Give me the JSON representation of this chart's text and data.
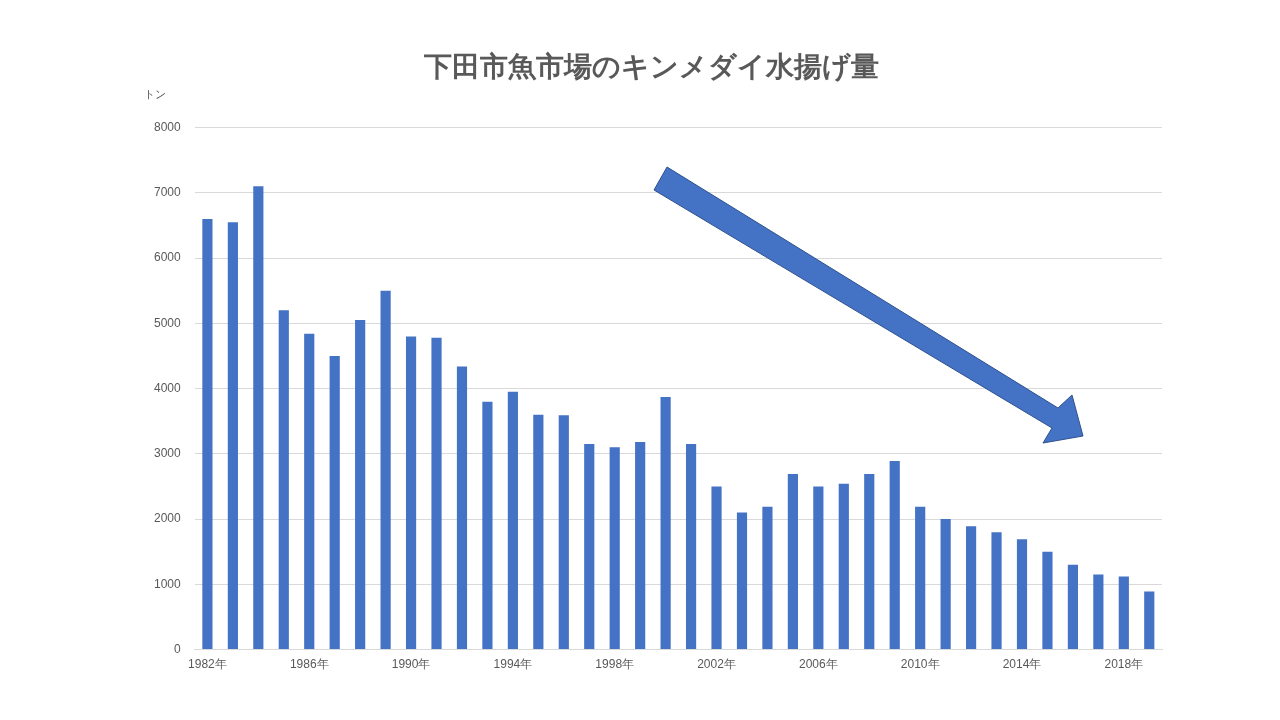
{
  "chart_data": {
    "type": "bar",
    "title": "下田市魚市場のキンメダイ水揚げ量",
    "ylabel": "トン",
    "categories": [
      "1982年",
      null,
      null,
      null,
      "1986年",
      null,
      null,
      null,
      "1990年",
      null,
      null,
      null,
      "1994年",
      null,
      null,
      null,
      "1998年",
      null,
      null,
      null,
      "2002年",
      null,
      null,
      null,
      "2006年",
      null,
      null,
      null,
      "2010年",
      null,
      null,
      null,
      "2014年",
      null,
      null,
      null,
      "2018年",
      null
    ],
    "values": [
      6600,
      6550,
      7100,
      5200,
      4840,
      4500,
      5050,
      5500,
      4800,
      4780,
      4340,
      3800,
      3950,
      3600,
      3590,
      3150,
      3100,
      3180,
      3870,
      3150,
      2500,
      2100,
      2190,
      2690,
      2500,
      2540,
      2690,
      2890,
      2190,
      2000,
      1890,
      1800,
      1690,
      1500,
      1300,
      1150,
      1120,
      890
    ],
    "color": "#4472c4",
    "ylim": [
      0,
      8000
    ],
    "yticks": [
      0,
      1000,
      2000,
      3000,
      4000,
      5000,
      6000,
      7000,
      8000
    ],
    "grid": "y",
    "legend": false
  }
}
